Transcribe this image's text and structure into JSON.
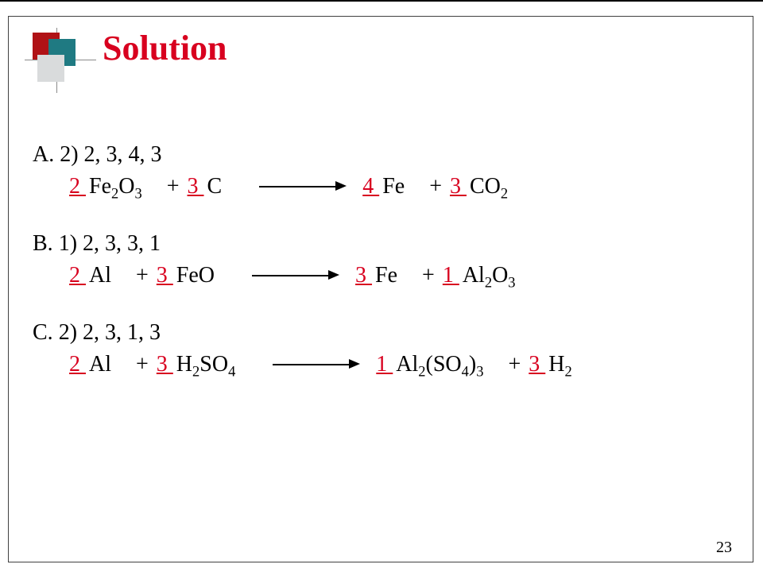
{
  "title": {
    "text": "Solution",
    "color": "#d8001f"
  },
  "deco": {
    "square_colors": [
      "#b01216",
      "#1f7a82",
      "#d9dbdc"
    ]
  },
  "page_number": "23",
  "items": [
    {
      "label": "A.",
      "answer": "2)  2, 3, 4, 3",
      "eq": [
        {
          "coef": "2",
          "formula": [
            [
              "Fe",
              ""
            ],
            [
              "2",
              "sub"
            ],
            [
              "O",
              ""
            ],
            [
              "3",
              "sub"
            ]
          ]
        },
        {
          "op": "+"
        },
        {
          "coef": "3",
          "formula": [
            [
              "C",
              ""
            ]
          ]
        },
        {
          "op": "arrow"
        },
        {
          "coef": "4",
          "formula": [
            [
              "Fe",
              ""
            ]
          ]
        },
        {
          "op": "+"
        },
        {
          "coef": "3",
          "formula": [
            [
              "CO",
              ""
            ],
            [
              "2",
              "sub"
            ]
          ]
        }
      ]
    },
    {
      "label": "B.",
      "answer": "1) 2, 3, 3, 1",
      "eq": [
        {
          "coef": "2",
          "formula": [
            [
              "Al",
              ""
            ]
          ]
        },
        {
          "op": "+"
        },
        {
          "coef": "3",
          "formula": [
            [
              "FeO",
              ""
            ]
          ]
        },
        {
          "op": "arrow"
        },
        {
          "coef": "3",
          "formula": [
            [
              "Fe",
              ""
            ]
          ]
        },
        {
          "op": "+"
        },
        {
          "coef": "1",
          "formula": [
            [
              "Al",
              ""
            ],
            [
              "2",
              "sub"
            ],
            [
              "O",
              ""
            ],
            [
              "3",
              "sub"
            ]
          ]
        }
      ]
    },
    {
      "label": "C.",
      "answer": "2) 2, 3, 1, 3",
      "eq": [
        {
          "coef": "2",
          "formula": [
            [
              "Al",
              ""
            ]
          ]
        },
        {
          "op": "+"
        },
        {
          "coef": "3",
          "formula": [
            [
              "H",
              ""
            ],
            [
              "2",
              "sub"
            ],
            [
              "SO",
              ""
            ],
            [
              "4",
              "sub"
            ]
          ]
        },
        {
          "op": "arrow"
        },
        {
          "coef": "1",
          "formula": [
            [
              "Al",
              ""
            ],
            [
              "2",
              "sub"
            ],
            [
              "(SO",
              ""
            ],
            [
              "4",
              "sub"
            ],
            [
              ")",
              ""
            ],
            [
              "3",
              "sub"
            ]
          ]
        },
        {
          "op": "+"
        },
        {
          "coef": "3",
          "formula": [
            [
              "H",
              ""
            ],
            [
              "2",
              "sub"
            ]
          ]
        }
      ]
    }
  ]
}
